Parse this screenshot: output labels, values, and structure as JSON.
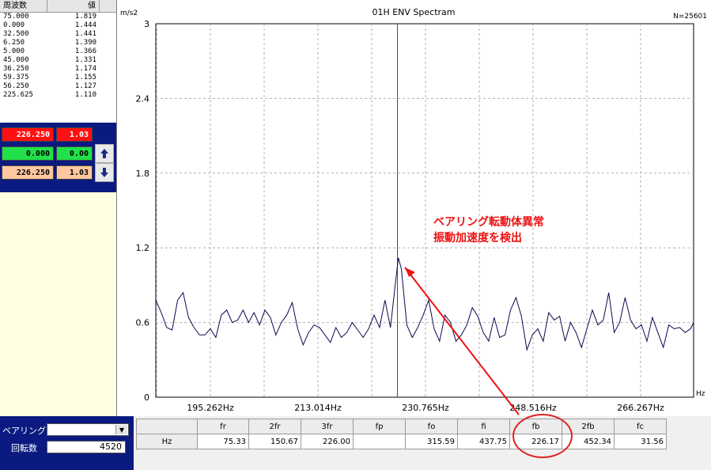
{
  "peak_list": {
    "header_freq": "周波数",
    "header_value": "値",
    "rows": [
      {
        "freq": "75.000",
        "value": "1.819"
      },
      {
        "freq": "0.000",
        "value": "1.444"
      },
      {
        "freq": "32.500",
        "value": "1.441"
      },
      {
        "freq": "6.250",
        "value": "1.390"
      },
      {
        "freq": "5.000",
        "value": "1.366"
      },
      {
        "freq": "45.000",
        "value": "1.331"
      },
      {
        "freq": "36.250",
        "value": "1.174"
      },
      {
        "freq": "59.375",
        "value": "1.155"
      },
      {
        "freq": "56.250",
        "value": "1.127"
      },
      {
        "freq": "225.625",
        "value": "1.110"
      }
    ]
  },
  "cursors": {
    "main": {
      "freq": "226.250",
      "value": "1.03",
      "color": "#ff1010"
    },
    "reference": {
      "freq": "0.000",
      "value": "0.00",
      "color": "#22e04a"
    },
    "delta": {
      "freq": "226.250",
      "value": "1.03",
      "color": "#ffc8a0"
    },
    "up_icon": "arrow-up-icon",
    "down_icon": "arrow-down-icon"
  },
  "chart": {
    "title": "01H ENV Spectram",
    "y_unit": "m/s2",
    "x_unit": "Hz",
    "n_label": "N=25601",
    "annotation_line1": "ベアリング転動体異常",
    "annotation_line2": "振動加速度を検出",
    "annotation_color": "#ee1111",
    "cursor_color": "#dd1111",
    "line_color": "#0a0a50"
  },
  "chart_data": {
    "type": "line",
    "x_ticks": [
      "195.262Hz",
      "213.014Hz",
      "230.765Hz",
      "248.516Hz",
      "266.267Hz"
    ],
    "y_ticks": [
      "0",
      "0.6",
      "1.2",
      "1.8",
      "2.4",
      "3"
    ],
    "ylim": [
      0,
      3
    ],
    "xlim": [
      186.4,
      275.1
    ],
    "cursor_x": 226.25,
    "grid": true,
    "series": [
      {
        "x": [
          186.4,
          187.3,
          188.2,
          189.1,
          190.0,
          190.9,
          191.8,
          192.7,
          193.6,
          194.5,
          195.4,
          196.3,
          197.2,
          198.1,
          199.0,
          199.9,
          200.8,
          201.7,
          202.6,
          203.5,
          204.4,
          205.3,
          206.2,
          207.1,
          208.0,
          208.9,
          209.8,
          210.7,
          211.6,
          212.5,
          213.4,
          214.3,
          215.2,
          216.1,
          217.0,
          217.9,
          218.8,
          219.7,
          220.6,
          221.5,
          222.4,
          223.3,
          224.2,
          225.1,
          226.0,
          226.4,
          226.9,
          227.8,
          228.7,
          229.6,
          230.5,
          231.4,
          232.3,
          233.2,
          234.1,
          235.0,
          235.9,
          236.8,
          237.7,
          238.6,
          239.5,
          240.4,
          241.3,
          242.2,
          243.1,
          244.0,
          244.9,
          245.8,
          246.7,
          247.6,
          248.5,
          249.4,
          250.3,
          251.2,
          252.1,
          253.0,
          253.9,
          254.8,
          255.7,
          256.6,
          257.5,
          258.4,
          259.3,
          260.2,
          261.1,
          262.0,
          262.9,
          263.8,
          264.7,
          265.6,
          266.5,
          267.4,
          268.3,
          269.2,
          270.1,
          271.0,
          271.9,
          272.8,
          273.7,
          274.6,
          275.1
        ],
        "values": [
          0.78,
          0.68,
          0.56,
          0.54,
          0.78,
          0.84,
          0.64,
          0.56,
          0.5,
          0.5,
          0.55,
          0.48,
          0.66,
          0.7,
          0.6,
          0.62,
          0.7,
          0.6,
          0.68,
          0.58,
          0.7,
          0.64,
          0.5,
          0.6,
          0.66,
          0.76,
          0.55,
          0.42,
          0.52,
          0.58,
          0.56,
          0.5,
          0.44,
          0.56,
          0.48,
          0.52,
          0.6,
          0.54,
          0.48,
          0.55,
          0.66,
          0.56,
          0.78,
          0.56,
          0.95,
          1.12,
          1.03,
          0.58,
          0.48,
          0.56,
          0.66,
          0.78,
          0.55,
          0.45,
          0.66,
          0.6,
          0.45,
          0.5,
          0.58,
          0.72,
          0.65,
          0.52,
          0.45,
          0.64,
          0.48,
          0.5,
          0.7,
          0.8,
          0.65,
          0.38,
          0.5,
          0.55,
          0.45,
          0.68,
          0.62,
          0.65,
          0.45,
          0.6,
          0.52,
          0.4,
          0.55,
          0.7,
          0.58,
          0.62,
          0.84,
          0.52,
          0.6,
          0.8,
          0.62,
          0.55,
          0.58,
          0.45,
          0.64,
          0.52,
          0.4,
          0.58,
          0.55,
          0.56,
          0.52,
          0.55,
          0.6
        ]
      }
    ]
  },
  "bearing_panel": {
    "bearing_label": "ベアリング",
    "bearing_value": "",
    "dropdown_icon": "chevron-down-icon",
    "speed_label": "回転数",
    "speed_value": "4520"
  },
  "freq_table": {
    "row_label": "Hz",
    "headers": [
      "fr",
      "2fr",
      "3fr",
      "fp",
      "fo",
      "fi",
      "fb",
      "2fb",
      "fc"
    ],
    "values": [
      "75.33",
      "150.67",
      "226.00",
      "",
      "315.59",
      "437.75",
      "226.17",
      "452.34",
      "31.56"
    ],
    "highlight_color": "#e02020"
  }
}
